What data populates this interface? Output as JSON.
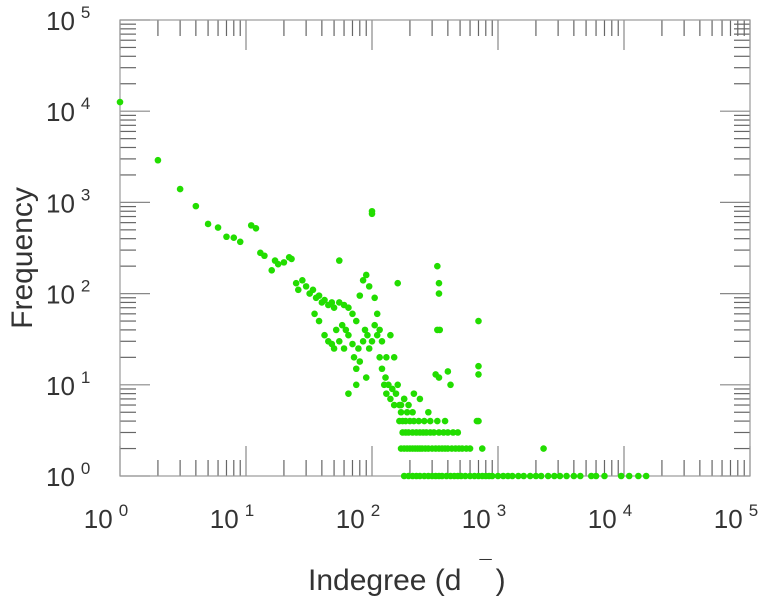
{
  "chart_data": {
    "type": "scatter",
    "title": "",
    "xlabel": "Indegree (d",
    "xlabel_mark": "¯",
    "xlabel_close": ")",
    "ylabel": "Frequency",
    "xscale": "log",
    "yscale": "log",
    "xlim": [
      1,
      100000
    ],
    "ylim": [
      1,
      100000
    ],
    "grid": false,
    "marker_color": "#22dd00",
    "x_ticks": [
      {
        "base": "10",
        "exp": "0"
      },
      {
        "base": "10",
        "exp": "1"
      },
      {
        "base": "10",
        "exp": "2"
      },
      {
        "base": "10",
        "exp": "3"
      },
      {
        "base": "10",
        "exp": "4"
      },
      {
        "base": "10",
        "exp": "5"
      }
    ],
    "y_ticks": [
      {
        "base": "10",
        "exp": "0"
      },
      {
        "base": "10",
        "exp": "1"
      },
      {
        "base": "10",
        "exp": "2"
      },
      {
        "base": "10",
        "exp": "3"
      },
      {
        "base": "10",
        "exp": "4"
      },
      {
        "base": "10",
        "exp": "5"
      }
    ],
    "points": [
      [
        1,
        12600
      ],
      [
        2,
        2900
      ],
      [
        3,
        1400
      ],
      [
        4,
        910
      ],
      [
        5,
        580
      ],
      [
        6,
        530
      ],
      [
        7,
        420
      ],
      [
        8,
        410
      ],
      [
        9,
        370
      ],
      [
        11,
        560
      ],
      [
        12,
        520
      ],
      [
        13,
        280
      ],
      [
        14,
        260
      ],
      [
        16,
        180
      ],
      [
        17,
        230
      ],
      [
        18,
        210
      ],
      [
        20,
        220
      ],
      [
        22,
        250
      ],
      [
        23,
        240
      ],
      [
        25,
        130
      ],
      [
        26,
        110
      ],
      [
        28,
        140
      ],
      [
        30,
        120
      ],
      [
        32,
        100
      ],
      [
        34,
        110
      ],
      [
        36,
        90
      ],
      [
        38,
        95
      ],
      [
        40,
        80
      ],
      [
        42,
        85
      ],
      [
        45,
        75
      ],
      [
        48,
        80
      ],
      [
        50,
        70
      ],
      [
        55,
        230
      ],
      [
        55,
        80
      ],
      [
        60,
        75
      ],
      [
        62,
        40
      ],
      [
        65,
        70
      ],
      [
        70,
        60
      ],
      [
        75,
        50
      ],
      [
        80,
        95
      ],
      [
        85,
        140
      ],
      [
        90,
        160
      ],
      [
        95,
        120
      ],
      [
        100,
        800
      ],
      [
        100,
        750
      ],
      [
        105,
        90
      ],
      [
        110,
        60
      ],
      [
        115,
        40
      ],
      [
        120,
        30
      ],
      [
        130,
        20
      ],
      [
        140,
        35
      ],
      [
        150,
        20
      ],
      [
        160,
        130
      ],
      [
        35,
        60
      ],
      [
        38,
        50
      ],
      [
        42,
        35
      ],
      [
        45,
        30
      ],
      [
        48,
        28
      ],
      [
        50,
        25
      ],
      [
        52,
        40
      ],
      [
        55,
        30
      ],
      [
        58,
        45
      ],
      [
        60,
        25
      ],
      [
        65,
        35
      ],
      [
        70,
        28
      ],
      [
        72,
        20
      ],
      [
        75,
        15
      ],
      [
        78,
        25
      ],
      [
        80,
        18
      ],
      [
        85,
        30
      ],
      [
        88,
        40
      ],
      [
        90,
        12
      ],
      [
        92,
        35
      ],
      [
        95,
        25
      ],
      [
        100,
        30
      ],
      [
        105,
        45
      ],
      [
        110,
        35
      ],
      [
        115,
        20
      ],
      [
        120,
        15
      ],
      [
        125,
        10
      ],
      [
        128,
        12
      ],
      [
        130,
        8
      ],
      [
        135,
        10
      ],
      [
        140,
        7
      ],
      [
        145,
        9
      ],
      [
        150,
        6
      ],
      [
        155,
        8
      ],
      [
        160,
        10
      ],
      [
        170,
        6
      ],
      [
        180,
        7
      ],
      [
        65,
        8
      ],
      [
        75,
        10
      ],
      [
        330,
        200
      ],
      [
        340,
        130
      ],
      [
        340,
        100
      ],
      [
        330,
        40
      ],
      [
        345,
        40
      ],
      [
        320,
        13
      ],
      [
        340,
        12
      ],
      [
        400,
        14
      ],
      [
        420,
        10
      ],
      [
        700,
        50
      ],
      [
        700,
        16
      ],
      [
        700,
        13
      ],
      [
        700,
        4
      ],
      [
        680,
        4
      ],
      [
        165,
        6
      ],
      [
        180,
        7
      ],
      [
        195,
        6
      ],
      [
        215,
        8
      ],
      [
        240,
        7
      ],
      [
        280,
        5
      ],
      [
        170,
        5
      ],
      [
        190,
        5
      ],
      [
        210,
        5
      ],
      [
        165,
        4
      ],
      [
        175,
        4
      ],
      [
        185,
        4
      ],
      [
        200,
        4
      ],
      [
        215,
        4
      ],
      [
        235,
        4
      ],
      [
        260,
        4
      ],
      [
        290,
        4
      ],
      [
        330,
        4
      ],
      [
        380,
        4
      ],
      [
        175,
        3
      ],
      [
        185,
        3
      ],
      [
        195,
        3
      ],
      [
        210,
        3
      ],
      [
        225,
        3
      ],
      [
        240,
        3
      ],
      [
        255,
        3
      ],
      [
        270,
        3
      ],
      [
        290,
        3
      ],
      [
        310,
        3
      ],
      [
        340,
        3
      ],
      [
        370,
        3
      ],
      [
        400,
        3
      ],
      [
        440,
        3
      ],
      [
        480,
        3
      ],
      [
        170,
        2
      ],
      [
        180,
        2
      ],
      [
        190,
        2
      ],
      [
        200,
        2
      ],
      [
        210,
        2
      ],
      [
        220,
        2
      ],
      [
        230,
        2
      ],
      [
        240,
        2
      ],
      [
        250,
        2
      ],
      [
        265,
        2
      ],
      [
        280,
        2
      ],
      [
        300,
        2
      ],
      [
        320,
        2
      ],
      [
        340,
        2
      ],
      [
        360,
        2
      ],
      [
        380,
        2
      ],
      [
        400,
        2
      ],
      [
        430,
        2
      ],
      [
        460,
        2
      ],
      [
        490,
        2
      ],
      [
        520,
        2
      ],
      [
        560,
        2
      ],
      [
        600,
        2
      ],
      [
        750,
        2
      ],
      [
        2300,
        2
      ],
      [
        180,
        1
      ],
      [
        195,
        1
      ],
      [
        210,
        1
      ],
      [
        225,
        1
      ],
      [
        240,
        1
      ],
      [
        260,
        1
      ],
      [
        280,
        1
      ],
      [
        300,
        1
      ],
      [
        320,
        1
      ],
      [
        340,
        1
      ],
      [
        360,
        1
      ],
      [
        390,
        1
      ],
      [
        420,
        1
      ],
      [
        450,
        1
      ],
      [
        480,
        1
      ],
      [
        510,
        1
      ],
      [
        550,
        1
      ],
      [
        600,
        1
      ],
      [
        650,
        1
      ],
      [
        700,
        1
      ],
      [
        750,
        1
      ],
      [
        800,
        1
      ],
      [
        850,
        1
      ],
      [
        900,
        1
      ],
      [
        1000,
        1
      ],
      [
        1100,
        1
      ],
      [
        1200,
        1
      ],
      [
        1300,
        1
      ],
      [
        1450,
        1
      ],
      [
        1600,
        1
      ],
      [
        1800,
        1
      ],
      [
        2000,
        1
      ],
      [
        2200,
        1
      ],
      [
        2500,
        1
      ],
      [
        2800,
        1
      ],
      [
        3100,
        1
      ],
      [
        3500,
        1
      ],
      [
        4000,
        1
      ],
      [
        4500,
        1
      ],
      [
        5500,
        1
      ],
      [
        6000,
        1
      ],
      [
        7000,
        1
      ],
      [
        9500,
        1
      ],
      [
        11000,
        1
      ],
      [
        13000,
        1
      ],
      [
        15000,
        1
      ]
    ]
  }
}
